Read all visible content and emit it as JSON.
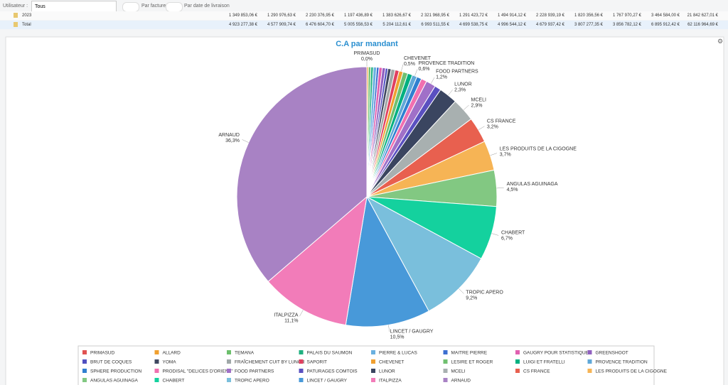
{
  "filters": {
    "user_label": "Utilisateur :",
    "user_value": "Tous",
    "option_invoice": "Par facture",
    "option_delivery": "Par date de livraison"
  },
  "table": {
    "rows": [
      {
        "label": "2023",
        "cells": [
          "1 349 853,06 €",
          "1 290 976,63 €",
          "2 230 376,95 €",
          "1 197 436,89 €",
          "1 383 626,67 €",
          "2 321 968,95 €",
          "1 291 423,72 €",
          "1 494 914,12 €",
          "2 228 939,19 €",
          "1 820 356,56 €",
          "1 767 970,27 €",
          "3 464 584,00 €",
          "21 842 627,01 €"
        ]
      },
      {
        "label": "Total",
        "cells": [
          "4 923 277,38 €",
          "4 577 909,74 €",
          "6 476 604,70 €",
          "5 005 556,53 €",
          "5 204 112,61 €",
          "6 993 511,55 €",
          "4 699 538,75 €",
          "4 996 544,12 €",
          "4 679 937,42 €",
          "3 807 277,35 €",
          "3 856 782,12 €",
          "6 895 912,42 €",
          "62 116 964,69 €"
        ]
      }
    ]
  },
  "chart_data": {
    "type": "pie",
    "title": "C.A par mandant",
    "categories": [
      "PRIMASUD",
      "ALLARD",
      "TEMANA",
      "PALAIS DU SAUMON",
      "PIERRE & LUCAS",
      "MAITRE PIERRE",
      "GAUGRY POUR STATISTIQUES",
      "GREENSHOOT",
      "BRUT DE COQUES",
      "YOMA",
      "FRAÎCHEMENT CUIT BY LUNOR",
      "SAPORIT",
      "CHEVENET",
      "LESIRE ET ROGER",
      "LUIGI ET FRATELLI",
      "PROVENCE TRADITION",
      "SPHERE PRODUCTION",
      "PRODISAL \"DELICES D'ORIENT\"",
      "FOOD PARTNERS",
      "PATURAGES COMTOIS",
      "LUNOR",
      "MCELI",
      "CS FRANCE",
      "LES PRODUITS DE LA CIGOGNE",
      "ANGULAS AGUINAGA",
      "CHABERT",
      "TROPIC APERO",
      "LINCET / GAUGRY",
      "ITALPIZZA",
      "ARNAUD"
    ],
    "values": [
      0.0,
      0.2,
      0.3,
      0.3,
      0.4,
      0.3,
      0.4,
      0.4,
      0.3,
      0.4,
      0.5,
      0.5,
      0.5,
      0.6,
      0.6,
      0.6,
      0.6,
      0.7,
      1.2,
      0.8,
      2.3,
      2.9,
      3.2,
      3.7,
      4.5,
      6.7,
      9.2,
      10.5,
      11.1,
      36.3
    ],
    "value_labels": [
      "0,0%",
      null,
      null,
      null,
      null,
      null,
      null,
      null,
      null,
      null,
      null,
      null,
      "0,5%",
      null,
      null,
      "0,6%",
      null,
      null,
      "1,2%",
      null,
      "2,3%",
      "2,9%",
      "3,2%",
      "3,7%",
      "4,5%",
      "6,7%",
      "9,2%",
      "10,5%",
      "11,1%",
      "36,3%"
    ],
    "colors": [
      "#e05252",
      "#f0a030",
      "#6cbf6c",
      "#20b080",
      "#6ab0e0",
      "#3c6fd0",
      "#e060b0",
      "#9060c0",
      "#5050c0",
      "#404860",
      "#a0a8a8",
      "#e04060",
      "#f0a030",
      "#70c070",
      "#00b080",
      "#60a8d8",
      "#3080d0",
      "#f070b0",
      "#a070c8",
      "#5a50c0",
      "#3a4560",
      "#a8b0b0",
      "#e8604f",
      "#f6b455",
      "#82c882",
      "#14d19e",
      "#7abfdc",
      "#4899d9",
      "#f27cb9",
      "#a882c4"
    ],
    "legend": "bottom"
  }
}
